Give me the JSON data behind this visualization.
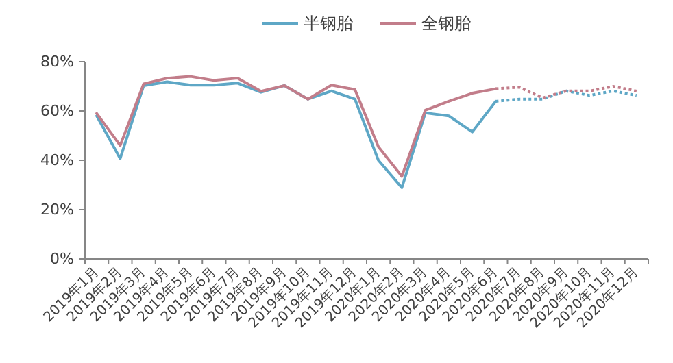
{
  "chart_data": {
    "type": "line",
    "categories": [
      "2019年1月",
      "2019年2月",
      "2019年3月",
      "2019年4月",
      "2019年5月",
      "2019年6月",
      "2019年7月",
      "2019年8月",
      "2019年9月",
      "2019年10月",
      "2019年11月",
      "2019年12月",
      "2020年1月",
      "2020年2月",
      "2020年3月",
      "2020年4月",
      "2020年5月",
      "2020年6月",
      "2020年7月",
      "2020年8月",
      "2020年9月",
      "2020年10月",
      "2020年11月",
      "2020年12月"
    ],
    "series": [
      {
        "name": "半钢胎",
        "color": "#5ea7c6",
        "values": [
          58,
          40.7,
          70.3,
          71.8,
          70.5,
          70.5,
          71.3,
          67.6,
          70.3,
          64.8,
          68.1,
          64.8,
          40,
          28.9,
          59.2,
          58,
          51.5,
          63.9,
          null,
          null,
          null,
          null,
          null,
          null
        ]
      },
      {
        "name": "全钢胎",
        "color": "#c27d8a",
        "values": [
          59,
          46,
          71,
          73.3,
          74,
          72.4,
          73.3,
          68,
          70.3,
          64.8,
          70.5,
          68.7,
          45.5,
          33.5,
          60.3,
          63.9,
          67.2,
          69,
          null,
          null,
          null,
          null,
          null,
          null
        ]
      },
      {
        "color": "#5ea7c6",
        "line_style": "dotted",
        "values": [
          null,
          null,
          null,
          null,
          null,
          null,
          null,
          null,
          null,
          null,
          null,
          null,
          null,
          null,
          null,
          null,
          null,
          63.9,
          64.8,
          64.8,
          68.1,
          66.3,
          68.1,
          66.3
        ]
      },
      {
        "color": "#c27d8a",
        "line_style": "dotted",
        "values": [
          null,
          null,
          null,
          null,
          null,
          null,
          null,
          null,
          null,
          null,
          null,
          null,
          null,
          null,
          null,
          null,
          null,
          69,
          69.6,
          65.3,
          68.1,
          68.1,
          70,
          68.1
        ]
      }
    ],
    "ylim": [
      0,
      80
    ],
    "yticks": [
      {
        "value": 0,
        "label": "0%"
      },
      {
        "value": 20,
        "label": "20%"
      },
      {
        "value": 40,
        "label": "40%"
      },
      {
        "value": 60,
        "label": "60%"
      },
      {
        "value": 80,
        "label": "80%"
      }
    ],
    "grid": false,
    "legend": "top",
    "marker": "none",
    "line_style": "solid"
  }
}
